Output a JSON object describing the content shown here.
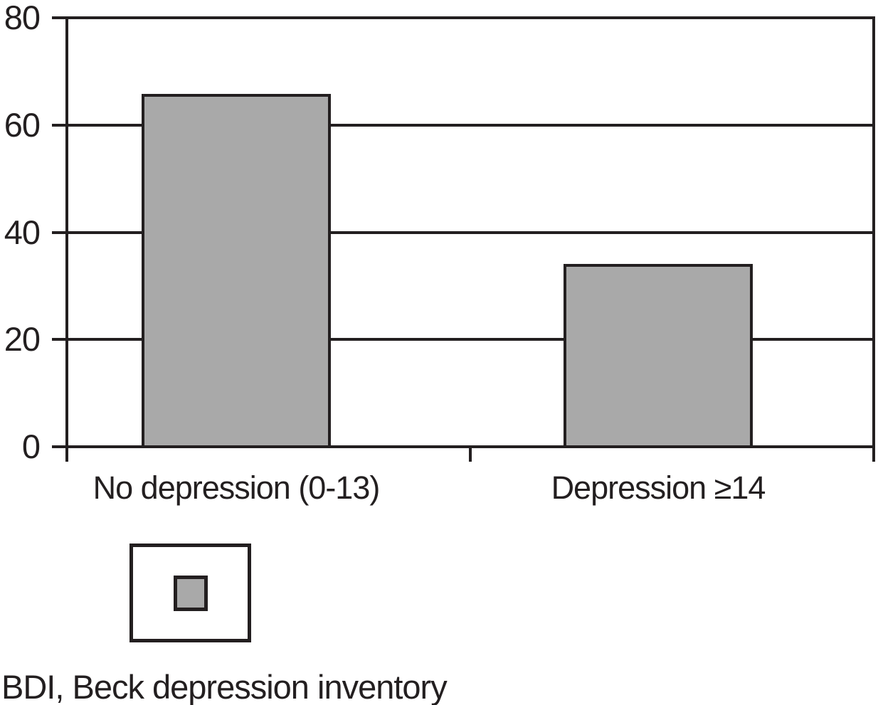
{
  "figure": {
    "footnote": "BDI, Beck depression inventory"
  },
  "legend": {
    "swatch_color": "#a9a9a9"
  },
  "chart_data": {
    "type": "bar",
    "categories": [
      "No depression (0-13)",
      "Depression ≥14"
    ],
    "values": [
      66,
      34
    ],
    "title": "",
    "xlabel": "",
    "ylabel": "",
    "ylim": [
      0,
      80
    ],
    "yticks": [
      0,
      20,
      40,
      60,
      80
    ],
    "grid": "horizontal",
    "legend_position": "bottom-left",
    "bar_color": "#a9a9a9",
    "axis_color": "#231f20"
  }
}
